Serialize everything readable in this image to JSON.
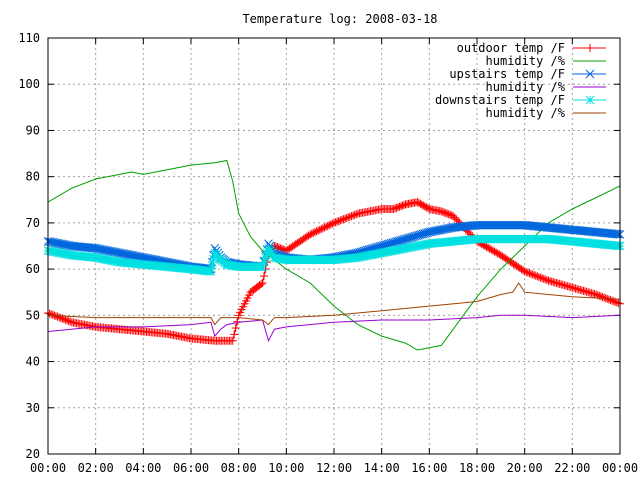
{
  "chart_data": {
    "type": "line",
    "title": "Temperature log: 2008-03-18",
    "xlabel": "",
    "ylabel": "",
    "xlim": [
      "00:00",
      "24:00"
    ],
    "ylim": [
      20,
      110
    ],
    "x_ticks": [
      "00:00",
      "02:00",
      "04:00",
      "06:00",
      "08:00",
      "10:00",
      "12:00",
      "14:00",
      "16:00",
      "18:00",
      "20:00",
      "22:00",
      "00:00"
    ],
    "y_ticks": [
      20,
      30,
      40,
      50,
      60,
      70,
      80,
      90,
      100,
      110
    ],
    "grid": true,
    "legend_position": "top-right",
    "series": [
      {
        "name": "outdoor temp /F",
        "color": "#ff0000",
        "marker": "plus",
        "x": [
          "00:00",
          "01:00",
          "02:00",
          "03:00",
          "04:00",
          "05:00",
          "06:00",
          "07:00",
          "07:45",
          "08:00",
          "08:30",
          "09:00",
          "09:15",
          "09:30",
          "10:00",
          "11:00",
          "12:00",
          "13:00",
          "14:00",
          "14:30",
          "15:00",
          "15:30",
          "16:00",
          "16:30",
          "17:00",
          "18:00",
          "19:00",
          "20:00",
          "21:00",
          "22:00",
          "23:00",
          "24:00"
        ],
        "values": [
          50.5,
          48.5,
          47.5,
          47,
          46.5,
          46,
          45,
          44.5,
          44.5,
          50,
          55,
          57,
          63,
          65,
          64,
          67.5,
          70,
          72,
          73,
          73,
          74,
          74.5,
          73,
          72.5,
          71.5,
          66,
          63,
          59.5,
          57.5,
          56,
          54.5,
          52.5
        ]
      },
      {
        "name": "humidity /%",
        "color": "#00a000",
        "marker": "none",
        "x": [
          "00:00",
          "01:00",
          "02:00",
          "03:00",
          "03:30",
          "04:00",
          "05:00",
          "06:00",
          "07:00",
          "07:30",
          "07:45",
          "08:00",
          "08:30",
          "09:00",
          "09:30",
          "10:00",
          "11:00",
          "12:00",
          "13:00",
          "14:00",
          "15:00",
          "15:30",
          "16:00",
          "16:30",
          "17:00",
          "18:00",
          "19:00",
          "20:00",
          "21:00",
          "22:00",
          "23:00",
          "24:00"
        ],
        "values": [
          74.5,
          77.5,
          79.5,
          80.5,
          81,
          80.5,
          81.5,
          82.5,
          83,
          83.5,
          79,
          72,
          67,
          64,
          62,
          60,
          57,
          52,
          48,
          45.5,
          44,
          42.5,
          43,
          43.5,
          47,
          54,
          60,
          65,
          70,
          73,
          75.5,
          78
        ]
      },
      {
        "name": "upstairs temp /F",
        "color": "#0066dd",
        "marker": "cross",
        "x": [
          "00:00",
          "01:00",
          "02:00",
          "03:00",
          "04:00",
          "05:00",
          "06:00",
          "06:50",
          "07:00",
          "07:15",
          "07:30",
          "08:00",
          "09:00",
          "09:15",
          "09:30",
          "09:45",
          "10:00",
          "11:00",
          "12:00",
          "13:00",
          "14:00",
          "15:00",
          "16:00",
          "17:00",
          "18:00",
          "19:00",
          "20:00",
          "21:00",
          "22:00",
          "23:00",
          "24:00"
        ],
        "values": [
          66,
          65,
          64.5,
          63.5,
          62.5,
          61.5,
          60.5,
          60,
          64.5,
          62.5,
          61.5,
          61,
          60.5,
          65.5,
          63.5,
          63,
          62.5,
          62,
          62.5,
          63.5,
          65,
          66.5,
          68,
          69,
          69.5,
          69.5,
          69.5,
          69,
          68.5,
          68,
          67.5
        ]
      },
      {
        "name": "humidity /%",
        "color": "#9900cc",
        "marker": "none",
        "x": [
          "00:00",
          "02:00",
          "04:00",
          "06:00",
          "06:50",
          "07:00",
          "07:15",
          "07:30",
          "08:00",
          "09:00",
          "09:15",
          "09:30",
          "10:00",
          "12:00",
          "14:00",
          "16:00",
          "18:00",
          "19:00",
          "20:00",
          "22:00",
          "24:00"
        ],
        "values": [
          46.5,
          47.5,
          47.5,
          48,
          48.5,
          45.5,
          47,
          48,
          48.5,
          49,
          44.5,
          47,
          47.5,
          48.5,
          49,
          49,
          49.5,
          50,
          50,
          49.5,
          50
        ]
      },
      {
        "name": "downstairs temp /F",
        "color": "#00e0e0",
        "marker": "star",
        "x": [
          "00:00",
          "01:00",
          "02:00",
          "03:00",
          "04:00",
          "05:00",
          "06:00",
          "06:50",
          "07:00",
          "07:15",
          "07:30",
          "08:00",
          "09:00",
          "09:15",
          "09:30",
          "10:00",
          "11:00",
          "12:00",
          "13:00",
          "14:00",
          "15:00",
          "16:00",
          "17:00",
          "18:00",
          "19:00",
          "20:00",
          "21:00",
          "22:00",
          "23:00",
          "24:00"
        ],
        "values": [
          64,
          63,
          62.5,
          61.5,
          61,
          60.5,
          60,
          59.5,
          63.5,
          62,
          61,
          60.5,
          60.5,
          64.5,
          62.5,
          62,
          62,
          62,
          62.5,
          63.5,
          64.5,
          65.5,
          66,
          66.5,
          66.5,
          66.5,
          66.5,
          66,
          65.5,
          65
        ]
      },
      {
        "name": "humidity /%",
        "color": "#a04000",
        "marker": "none",
        "x": [
          "00:00",
          "02:00",
          "04:00",
          "06:00",
          "06:50",
          "07:00",
          "07:15",
          "07:30",
          "08:00",
          "09:00",
          "09:15",
          "09:30",
          "10:00",
          "12:00",
          "14:00",
          "16:00",
          "18:00",
          "19:00",
          "19:30",
          "19:45",
          "20:00",
          "21:00",
          "22:00",
          "24:00"
        ],
        "values": [
          50,
          49.5,
          49.5,
          49.5,
          49.5,
          48,
          49.5,
          49.5,
          49.5,
          49,
          48,
          49.5,
          49.5,
          50,
          51,
          52,
          53,
          54.5,
          55,
          57,
          55,
          54.5,
          54,
          53.5
        ]
      }
    ]
  }
}
